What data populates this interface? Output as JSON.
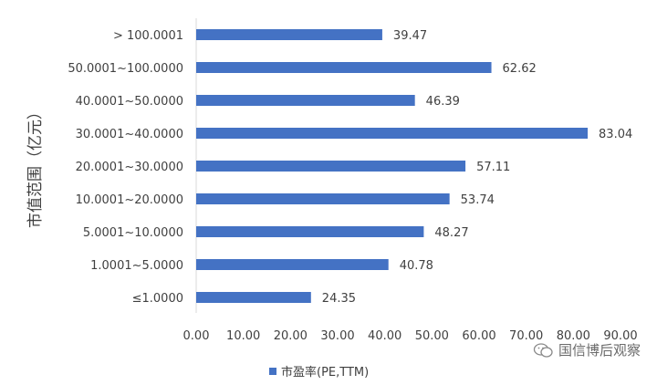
{
  "chart_data": {
    "type": "bar",
    "orientation": "horizontal",
    "categories": [
      "> 100.0001",
      "50.0001~100.0000",
      "40.0001~50.0000",
      "30.0001~40.0000",
      "20.0001~30.0000",
      "10.0001~20.0000",
      "5.0001~10.0000",
      "1.0001~5.0000",
      "≤1.0000"
    ],
    "series": [
      {
        "name": "市盈率(PE,TTM)",
        "values": [
          39.47,
          62.62,
          46.39,
          83.04,
          57.11,
          53.74,
          48.27,
          40.78,
          24.35
        ],
        "labels": [
          "39.47",
          "62.62",
          "46.39",
          "83.04",
          "57.11",
          "53.74",
          "48.27",
          "40.78",
          "24.35"
        ]
      }
    ],
    "ylabel": "市值范围（亿元）",
    "xlim": [
      0,
      90
    ],
    "xticks": [
      "0.00",
      "10.00",
      "20.00",
      "30.00",
      "40.00",
      "50.00",
      "60.00",
      "70.00",
      "80.00",
      "90.00"
    ],
    "grid": false,
    "legend": "bottom",
    "bar_color": "#4472C4"
  },
  "watermark": "国信博后观察"
}
